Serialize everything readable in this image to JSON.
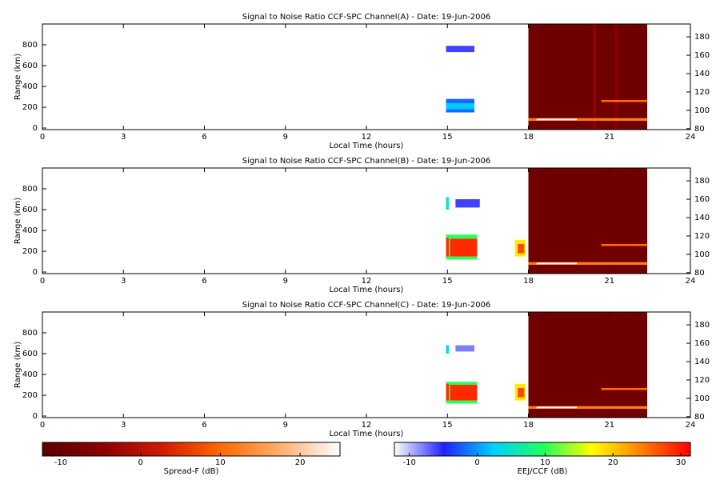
{
  "chart_data": [
    {
      "type": "heatmap",
      "title": "Signal to Noise Ratio CCF-SPC Channel(A) - Date: 19-Jun-2006",
      "xlabel": "Local Time (hours)",
      "ylabel": "Range (km)",
      "xlim": [
        0,
        24
      ],
      "xticks": [
        0,
        3,
        6,
        9,
        12,
        15,
        18,
        21,
        24
      ],
      "ylim": [
        -15,
        1000
      ],
      "yticks": [
        0,
        200,
        400,
        600,
        800
      ],
      "y2lim": [
        79,
        194
      ],
      "y2ticks": [
        80,
        100,
        120,
        140,
        160,
        180
      ],
      "patches": [
        {
          "x": [
            14.95,
            16.0
          ],
          "range": [
            730,
            790
          ],
          "value": -6,
          "colorbar": 4
        },
        {
          "x": [
            14.95,
            16.0
          ],
          "range": [
            150,
            280
          ],
          "value": -2,
          "colorbar": 4
        },
        {
          "x": [
            14.95,
            16.0
          ],
          "range": [
            180,
            240
          ],
          "value": 2,
          "colorbar": 4
        },
        {
          "x": [
            18,
            22.4
          ],
          "range": [
            -15,
            1000
          ],
          "value": -9,
          "colorbar": 3
        },
        {
          "x": [
            20.4,
            20.5
          ],
          "range": [
            -15,
            1000
          ],
          "value": -4,
          "colorbar": 3
        },
        {
          "x": [
            21.2,
            21.3
          ],
          "range": [
            -15,
            1000
          ],
          "value": -5,
          "colorbar": 3
        },
        {
          "x": [
            18,
            22.4
          ],
          "range": [
            70,
            95
          ],
          "value": 12,
          "colorbar": 3
        },
        {
          "x": [
            18.3,
            19.8
          ],
          "range": [
            75,
            90
          ],
          "value": 25,
          "colorbar": 3
        },
        {
          "x": [
            20.7,
            22.4
          ],
          "range": [
            250,
            270
          ],
          "value": 10,
          "colorbar": 3
        }
      ]
    },
    {
      "type": "heatmap",
      "title": "Signal to Noise Ratio CCF-SPC Channel(B) - Date: 19-Jun-2006",
      "xlabel": "Local Time (hours)",
      "ylabel": "Range (km)",
      "xlim": [
        0,
        24
      ],
      "xticks": [
        0,
        3,
        6,
        9,
        12,
        15,
        18,
        21,
        24
      ],
      "ylim": [
        -15,
        1000
      ],
      "yticks": [
        0,
        200,
        400,
        600,
        800
      ],
      "y2lim": [
        79,
        194
      ],
      "y2ticks": [
        80,
        100,
        120,
        140,
        160,
        180
      ],
      "patches": [
        {
          "x": [
            14.95,
            15.05
          ],
          "range": [
            600,
            720
          ],
          "value": 5,
          "colorbar": 4
        },
        {
          "x": [
            15.3,
            16.2
          ],
          "range": [
            620,
            700
          ],
          "value": -6,
          "colorbar": 4
        },
        {
          "x": [
            14.95,
            16.1
          ],
          "range": [
            120,
            360
          ],
          "value": 10,
          "colorbar": 4
        },
        {
          "x": [
            15.1,
            16.1
          ],
          "range": [
            150,
            320
          ],
          "value": 29,
          "colorbar": 4
        },
        {
          "x": [
            14.95,
            15.05
          ],
          "range": [
            150,
            330
          ],
          "value": 29,
          "colorbar": 4
        },
        {
          "x": [
            17.5,
            17.9
          ],
          "range": [
            150,
            310
          ],
          "value": 18,
          "colorbar": 4
        },
        {
          "x": [
            17.6,
            17.85
          ],
          "range": [
            180,
            270
          ],
          "value": 27,
          "colorbar": 4
        },
        {
          "x": [
            18,
            22.4
          ],
          "range": [
            -15,
            1000
          ],
          "value": -9,
          "colorbar": 3
        },
        {
          "x": [
            18,
            22.4
          ],
          "range": [
            70,
            95
          ],
          "value": 12,
          "colorbar": 3
        },
        {
          "x": [
            18.3,
            19.8
          ],
          "range": [
            75,
            90
          ],
          "value": 25,
          "colorbar": 3
        },
        {
          "x": [
            20.7,
            22.4
          ],
          "range": [
            250,
            270
          ],
          "value": 10,
          "colorbar": 3
        }
      ]
    },
    {
      "type": "heatmap",
      "title": "Signal to Noise Ratio CCF-SPC Channel(C) - Date: 19-Jun-2006",
      "xlabel": "Local Time (hours)",
      "ylabel": "Range (km)",
      "xlim": [
        0,
        24
      ],
      "xticks": [
        0,
        3,
        6,
        9,
        12,
        15,
        18,
        21,
        24
      ],
      "ylim": [
        -15,
        1000
      ],
      "yticks": [
        0,
        200,
        400,
        600,
        800
      ],
      "y2lim": [
        79,
        194
      ],
      "y2ticks": [
        80,
        100,
        120,
        140,
        160,
        180
      ],
      "patches": [
        {
          "x": [
            14.95,
            15.05
          ],
          "range": [
            600,
            680
          ],
          "value": 3,
          "colorbar": 4
        },
        {
          "x": [
            15.3,
            16.0
          ],
          "range": [
            620,
            680
          ],
          "value": -8,
          "colorbar": 4
        },
        {
          "x": [
            14.95,
            16.1
          ],
          "range": [
            120,
            330
          ],
          "value": 10,
          "colorbar": 4
        },
        {
          "x": [
            15.1,
            16.1
          ],
          "range": [
            150,
            300
          ],
          "value": 29,
          "colorbar": 4
        },
        {
          "x": [
            14.95,
            15.05
          ],
          "range": [
            150,
            310
          ],
          "value": 29,
          "colorbar": 4
        },
        {
          "x": [
            17.5,
            17.9
          ],
          "range": [
            150,
            310
          ],
          "value": 18,
          "colorbar": 4
        },
        {
          "x": [
            17.6,
            17.85
          ],
          "range": [
            180,
            270
          ],
          "value": 27,
          "colorbar": 4
        },
        {
          "x": [
            18,
            22.4
          ],
          "range": [
            -15,
            1000
          ],
          "value": -9,
          "colorbar": 3
        },
        {
          "x": [
            18,
            22.4
          ],
          "range": [
            70,
            95
          ],
          "value": 12,
          "colorbar": 3
        },
        {
          "x": [
            18.3,
            19.8
          ],
          "range": [
            75,
            90
          ],
          "value": 25,
          "colorbar": 3
        },
        {
          "x": [
            20.7,
            22.4
          ],
          "range": [
            250,
            270
          ],
          "value": 10,
          "colorbar": 3
        }
      ]
    },
    {
      "type": "colorbar",
      "label": "Spread-F (dB)",
      "lim": [
        -12.3,
        25
      ],
      "ticks": [
        -10,
        0,
        10,
        20
      ],
      "colors": [
        "#5a0000",
        "#8b0000",
        "#d01a00",
        "#ff6a00",
        "#ffb070",
        "#ffffff"
      ]
    },
    {
      "type": "colorbar",
      "label": "EEJ/CCF (dB)",
      "lim": [
        -12.2,
        31.4
      ],
      "ticks": [
        -10,
        0,
        10,
        20,
        30
      ],
      "colors": [
        "#ffffff",
        "#2020ff",
        "#00d0ff",
        "#20ff60",
        "#ffff00",
        "#ff8000",
        "#ff0000"
      ]
    }
  ]
}
